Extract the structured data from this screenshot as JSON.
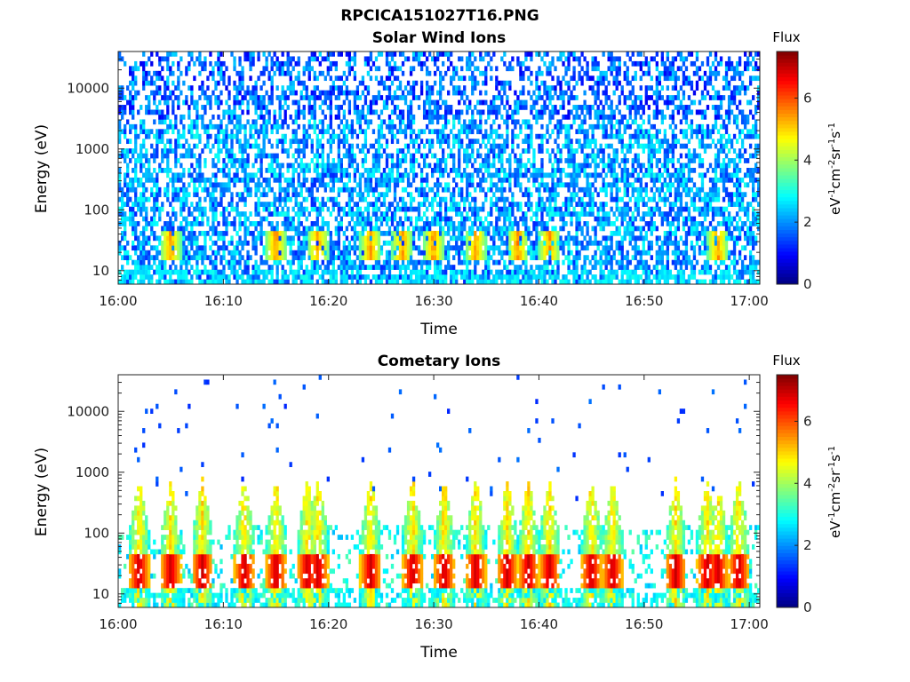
{
  "figure": {
    "title": "RPCICA151027T16.PNG"
  },
  "chart_data": [
    {
      "type": "heatmap",
      "title": "Solar Wind Ions",
      "xlabel": "Time",
      "ylabel": "Energy (eV)",
      "x_ticks": [
        "16:00",
        "16:10",
        "16:20",
        "16:30",
        "16:40",
        "16:50",
        "17:00"
      ],
      "x_range": [
        "16:00",
        "17:01"
      ],
      "y_scale": "log",
      "y_ticks": [
        "10",
        "100",
        "1000",
        "10000"
      ],
      "y_range": [
        6,
        40000
      ],
      "colorbar": {
        "title": "Flux",
        "label": "eV-1cm-2sr-1s-1",
        "range": [
          0,
          7.5
        ],
        "ticks": [
          "0",
          "2",
          "4",
          "6"
        ],
        "colormap": "jet"
      },
      "features": {
        "background_flux": [
          1.5,
          3.0
        ],
        "band_energy_eV": [
          15,
          45
        ],
        "band_flux": [
          3.5,
          5.8
        ],
        "band_times": [
          "16:05",
          "16:15",
          "16:19",
          "16:24",
          "16:27",
          "16:30",
          "16:34",
          "16:38",
          "16:41",
          "16:57"
        ]
      }
    },
    {
      "type": "heatmap",
      "title": "Cometary Ions",
      "xlabel": "Time",
      "ylabel": "Energy (eV)",
      "x_ticks": [
        "16:00",
        "16:10",
        "16:20",
        "16:30",
        "16:40",
        "16:50",
        "17:00"
      ],
      "x_range": [
        "16:00",
        "17:01"
      ],
      "y_scale": "log",
      "y_ticks": [
        "10",
        "100",
        "1000",
        "10000"
      ],
      "y_range": [
        6,
        40000
      ],
      "colorbar": {
        "title": "Flux",
        "label": "eV-1cm-2sr-1s-1",
        "range": [
          0,
          7.5
        ],
        "ticks": [
          "0",
          "2",
          "4",
          "6"
        ],
        "colormap": "jet"
      },
      "features": {
        "band_energy_eV": [
          12,
          45
        ],
        "band_flux": [
          5.0,
          7.0
        ],
        "burst_times": [
          "16:02",
          "16:05",
          "16:08",
          "16:12",
          "16:15",
          "16:18",
          "16:19",
          "16:24",
          "16:28",
          "16:31",
          "16:34",
          "16:37",
          "16:39",
          "16:41",
          "16:45",
          "16:47",
          "16:53",
          "16:56",
          "16:57",
          "16:59"
        ]
      }
    }
  ]
}
